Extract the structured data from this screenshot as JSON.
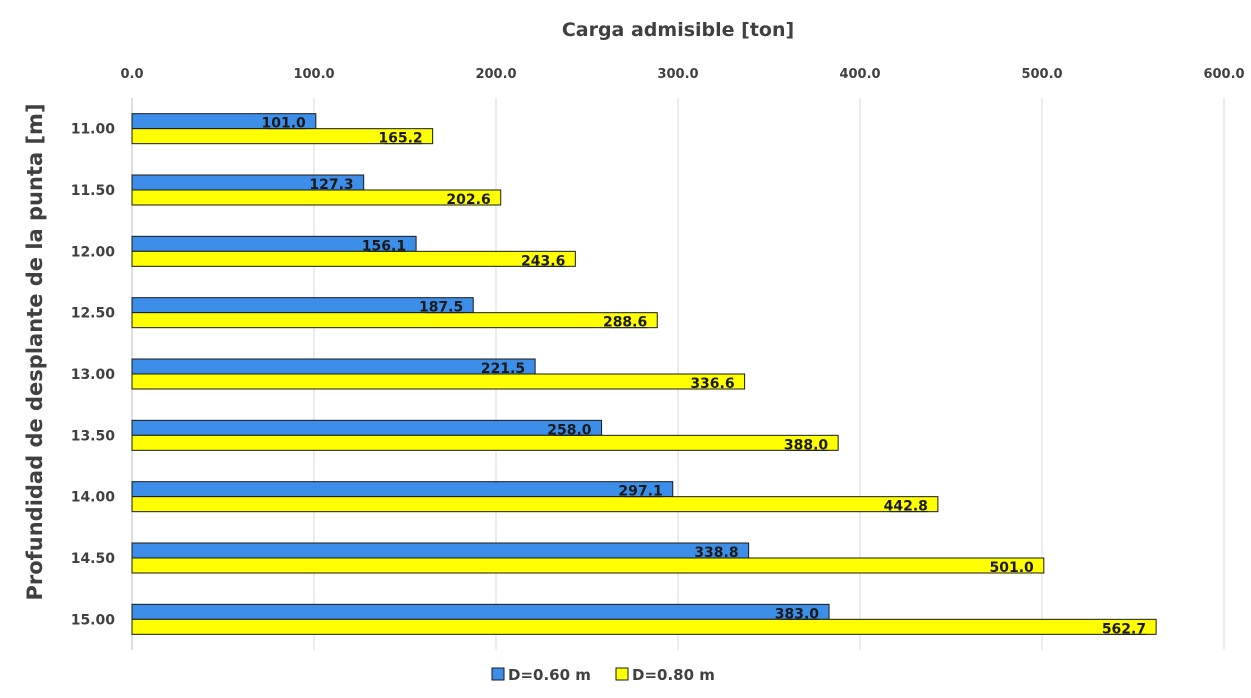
{
  "chart_data": {
    "type": "bar",
    "orientation": "horizontal",
    "title": "Carga admisible [ton]",
    "xlabel": "Carga admisible [ton]",
    "ylabel": "Profundidad de desplante de la punta [m]",
    "xlim": [
      0,
      600
    ],
    "x_ticks": [
      "0.0",
      "100.0",
      "200.0",
      "300.0",
      "400.0",
      "500.0",
      "600.0"
    ],
    "x_axis_position": "top",
    "grid": true,
    "legend_position": "bottom",
    "categories": [
      "11.00",
      "11.50",
      "12.00",
      "12.50",
      "13.00",
      "13.50",
      "14.00",
      "14.50",
      "15.00"
    ],
    "series": [
      {
        "name": "D=0.60 m",
        "color": "#3d8ee8",
        "values": [
          101.0,
          127.3,
          156.1,
          187.5,
          221.5,
          258.0,
          297.1,
          338.8,
          383.0
        ],
        "labels": [
          "101.0",
          "127.3",
          "156.1",
          "187.5",
          "221.5",
          "258.0",
          "297.1",
          "338.8",
          "383.0"
        ]
      },
      {
        "name": "D=0.80 m",
        "color": "#ffff00",
        "values": [
          165.2,
          202.6,
          243.6,
          288.6,
          336.6,
          388.0,
          442.8,
          501.0,
          562.7
        ],
        "labels": [
          "165.2",
          "202.6",
          "243.6",
          "288.6",
          "336.6",
          "388.0",
          "442.8",
          "501.0",
          "562.7"
        ]
      }
    ]
  }
}
